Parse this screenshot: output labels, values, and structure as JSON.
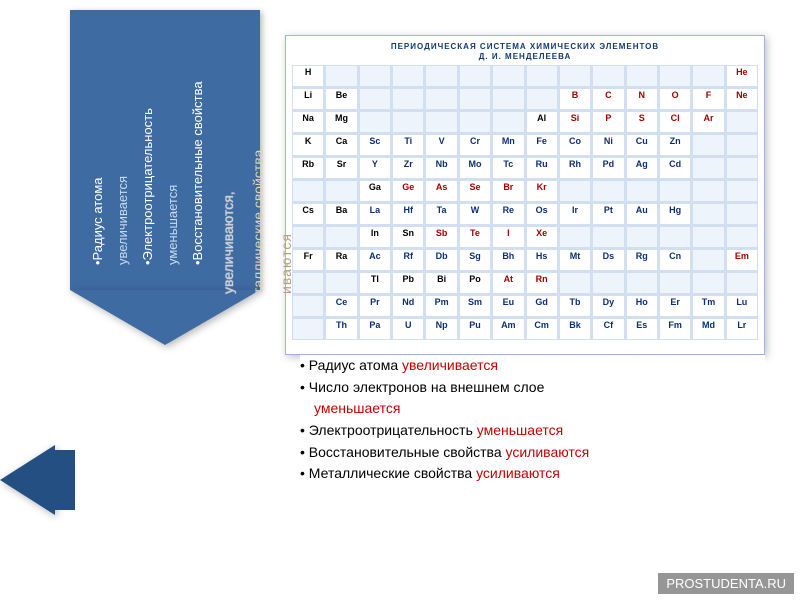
{
  "vert_arrow": {
    "bgcolor": "#3f6ba3",
    "lines": [
      {
        "prefix": "•Радиус атома",
        "hl": ""
      },
      {
        "prefix": "",
        "hl": "увеличивается"
      },
      {
        "prefix": "•Электроотрицательность",
        "hl": ""
      },
      {
        "prefix": "",
        "hl": "уменьшается"
      },
      {
        "prefix": "•Восстановительные свойства",
        "hl": ""
      }
    ]
  },
  "overlay_labels": {
    "a": "увеличиваются,",
    "b": "таллические свойства",
    "c": "иваются"
  },
  "ptable": {
    "title1": "ПЕРИОДИЧЕСКАЯ СИСТЕМА ХИМИЧЕСКИХ ЭЛЕМЕНТОВ",
    "title2": "Д. И. МЕНДЕЛЕЕВА",
    "rows": [
      [
        [
          "H",
          "k"
        ],
        [
          "",
          "e"
        ],
        [
          "",
          "e"
        ],
        [
          "",
          "e"
        ],
        [
          "",
          "e"
        ],
        [
          "",
          "e"
        ],
        [
          "",
          "e"
        ],
        [
          "",
          "e"
        ],
        [
          "",
          "e"
        ],
        [
          "",
          "e"
        ],
        [
          "",
          "e"
        ],
        [
          "",
          "e"
        ],
        [
          "",
          "e"
        ],
        [
          "He",
          "r"
        ]
      ],
      [
        [
          "Li",
          "k"
        ],
        [
          "Be",
          "k"
        ],
        [
          "",
          "e"
        ],
        [
          "",
          "e"
        ],
        [
          "",
          "e"
        ],
        [
          "",
          "e"
        ],
        [
          "",
          "e"
        ],
        [
          "",
          "e"
        ],
        [
          "B",
          "r"
        ],
        [
          "C",
          "r"
        ],
        [
          "N",
          "r"
        ],
        [
          "O",
          "r"
        ],
        [
          "F",
          "r"
        ],
        [
          "Ne",
          "r"
        ]
      ],
      [
        [
          "Na",
          "k"
        ],
        [
          "Mg",
          "k"
        ],
        [
          "",
          "e"
        ],
        [
          "",
          "e"
        ],
        [
          "",
          "e"
        ],
        [
          "",
          "e"
        ],
        [
          "",
          "e"
        ],
        [
          "Al",
          "k"
        ],
        [
          "Si",
          "r"
        ],
        [
          "P",
          "r"
        ],
        [
          "S",
          "r"
        ],
        [
          "Cl",
          "r"
        ],
        [
          "Ar",
          "r"
        ],
        [
          "",
          "e"
        ]
      ],
      [
        [
          "K",
          "k"
        ],
        [
          "Ca",
          "k"
        ],
        [
          "Sc",
          "b"
        ],
        [
          "Ti",
          "b"
        ],
        [
          "V",
          "b"
        ],
        [
          "Cr",
          "b"
        ],
        [
          "Mn",
          "b"
        ],
        [
          "Fe",
          "b"
        ],
        [
          "Co",
          "b"
        ],
        [
          "Ni",
          "b"
        ],
        [
          "Cu",
          "b"
        ],
        [
          "Zn",
          "b"
        ],
        [
          "",
          "e"
        ],
        [
          "",
          "e"
        ]
      ],
      [
        [
          "Rb",
          "k"
        ],
        [
          "Sr",
          "k"
        ],
        [
          "Y",
          "b"
        ],
        [
          "Zr",
          "b"
        ],
        [
          "Nb",
          "b"
        ],
        [
          "Mo",
          "b"
        ],
        [
          "Tc",
          "b"
        ],
        [
          "Ru",
          "b"
        ],
        [
          "Rh",
          "b"
        ],
        [
          "Pd",
          "b"
        ],
        [
          "Ag",
          "b"
        ],
        [
          "Cd",
          "b"
        ],
        [
          "",
          "e"
        ],
        [
          "",
          "e"
        ]
      ],
      [
        [
          "",
          "e"
        ],
        [
          "",
          "e"
        ],
        [
          "Ga",
          "k"
        ],
        [
          "Ge",
          "r"
        ],
        [
          "As",
          "r"
        ],
        [
          "Se",
          "r"
        ],
        [
          "Br",
          "r"
        ],
        [
          "Kr",
          "r"
        ],
        [
          "",
          "e"
        ],
        [
          "",
          "e"
        ],
        [
          "",
          "e"
        ],
        [
          "",
          "e"
        ],
        [
          "",
          "e"
        ],
        [
          "",
          "e"
        ]
      ],
      [
        [
          "Cs",
          "k"
        ],
        [
          "Ba",
          "k"
        ],
        [
          "La",
          "b"
        ],
        [
          "Hf",
          "b"
        ],
        [
          "Ta",
          "b"
        ],
        [
          "W",
          "b"
        ],
        [
          "Re",
          "b"
        ],
        [
          "Os",
          "b"
        ],
        [
          "Ir",
          "b"
        ],
        [
          "Pt",
          "b"
        ],
        [
          "Au",
          "b"
        ],
        [
          "Hg",
          "b"
        ],
        [
          "",
          "e"
        ],
        [
          "",
          "e"
        ]
      ],
      [
        [
          "",
          "e"
        ],
        [
          "",
          "e"
        ],
        [
          "In",
          "k"
        ],
        [
          "Sn",
          "k"
        ],
        [
          "Sb",
          "r"
        ],
        [
          "Te",
          "r"
        ],
        [
          "I",
          "r"
        ],
        [
          "Xe",
          "r"
        ],
        [
          "",
          "e"
        ],
        [
          "",
          "e"
        ],
        [
          "",
          "e"
        ],
        [
          "",
          "e"
        ],
        [
          "",
          "e"
        ],
        [
          "",
          "e"
        ]
      ],
      [
        [
          "Fr",
          "k"
        ],
        [
          "Ra",
          "k"
        ],
        [
          "Ac",
          "b"
        ],
        [
          "Rf",
          "b"
        ],
        [
          "Db",
          "b"
        ],
        [
          "Sg",
          "b"
        ],
        [
          "Bh",
          "b"
        ],
        [
          "Hs",
          "b"
        ],
        [
          "Mt",
          "b"
        ],
        [
          "Ds",
          "b"
        ],
        [
          "Rg",
          "b"
        ],
        [
          "Cn",
          "b"
        ],
        [
          "",
          "e"
        ],
        [
          "Em",
          "r"
        ]
      ],
      [
        [
          "",
          "e"
        ],
        [
          "",
          "e"
        ],
        [
          "Tl",
          "k"
        ],
        [
          "Pb",
          "k"
        ],
        [
          "Bi",
          "k"
        ],
        [
          "Po",
          "k"
        ],
        [
          "At",
          "r"
        ],
        [
          "Rn",
          "r"
        ],
        [
          "",
          "e"
        ],
        [
          "",
          "e"
        ],
        [
          "",
          "e"
        ],
        [
          "",
          "e"
        ],
        [
          "",
          "e"
        ],
        [
          "",
          "e"
        ]
      ],
      [
        [
          "",
          "e"
        ],
        [
          "Ce",
          "b"
        ],
        [
          "Pr",
          "b"
        ],
        [
          "Nd",
          "b"
        ],
        [
          "Pm",
          "b"
        ],
        [
          "Sm",
          "b"
        ],
        [
          "Eu",
          "b"
        ],
        [
          "Gd",
          "b"
        ],
        [
          "Tb",
          "b"
        ],
        [
          "Dy",
          "b"
        ],
        [
          "Ho",
          "b"
        ],
        [
          "Er",
          "b"
        ],
        [
          "Tm",
          "b"
        ],
        [
          "Lu",
          "b"
        ]
      ],
      [
        [
          "",
          "e"
        ],
        [
          "Th",
          "b"
        ],
        [
          "Pa",
          "b"
        ],
        [
          "U",
          "b"
        ],
        [
          "Np",
          "b"
        ],
        [
          "Pu",
          "b"
        ],
        [
          "Am",
          "b"
        ],
        [
          "Cm",
          "b"
        ],
        [
          "Bk",
          "b"
        ],
        [
          "Cf",
          "b"
        ],
        [
          "Es",
          "b"
        ],
        [
          "Fm",
          "b"
        ],
        [
          "Md",
          "b"
        ],
        [
          "Lr",
          "b"
        ]
      ]
    ]
  },
  "bullets": [
    {
      "a": "Радиус атома ",
      "b": "увеличивается"
    },
    {
      "a": "Число электронов на внешнем слое",
      "b": ""
    },
    {
      "a": "",
      "b": "уменьшается"
    },
    {
      "a": "Электроотрицательность ",
      "b": "уменьшается"
    },
    {
      "a": "Восстановительные свойства ",
      "b": "усиливаются"
    },
    {
      "a": "Металлические свойства ",
      "b": "усиливаются"
    }
  ],
  "watermark": "PROSTUDENTA.RU"
}
